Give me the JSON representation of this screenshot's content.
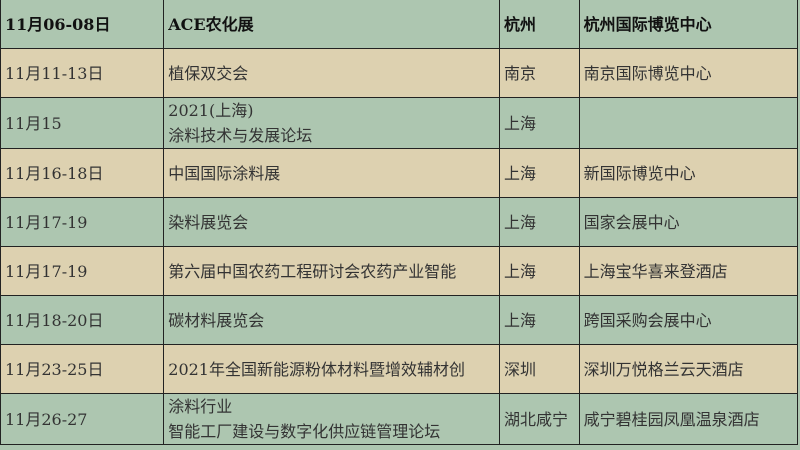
{
  "colors": {
    "green": "#adc6b0",
    "tan": "#ddd1b0"
  },
  "header": {
    "date": "11月06-08日",
    "event": "ACE农化展",
    "city": "杭州",
    "venue": "杭州国际博览中心"
  },
  "rows": [
    {
      "date": "11月11-13日",
      "event": [
        "植保双交会"
      ],
      "city": "南京",
      "venue": "南京国际博览中心"
    },
    {
      "date": "11月15",
      "event": [
        "2021(上海)",
        "涂料技术与发展论坛"
      ],
      "city": "上海",
      "venue": ""
    },
    {
      "date": "11月16-18日",
      "event": [
        "中国国际涂料展"
      ],
      "city": "上海",
      "venue": "新国际博览中心"
    },
    {
      "date": "11月17-19",
      "event": [
        "染料展览会"
      ],
      "city": "上海",
      "venue": "国家会展中心"
    },
    {
      "date": "11月17-19",
      "event": [
        "第六届中国农药工程研讨会农药产业智能"
      ],
      "city": "上海",
      "venue": "上海宝华喜来登酒店"
    },
    {
      "date": "11月18-20日",
      "event": [
        "碳材料展览会"
      ],
      "city": "上海",
      "venue": "跨国采购会展中心"
    },
    {
      "date": "11月23-25日",
      "event": [
        "2021年全国新能源粉体材料暨增效辅材创"
      ],
      "city": "深圳",
      "venue": "深圳万悦格兰云天酒店"
    },
    {
      "date": "11月26-27",
      "event": [
        "涂料行业",
        "智能工厂建设与数字化供应链管理论坛"
      ],
      "city": "湖北咸宁",
      "venue": "咸宁碧桂园凤凰温泉酒店"
    }
  ]
}
